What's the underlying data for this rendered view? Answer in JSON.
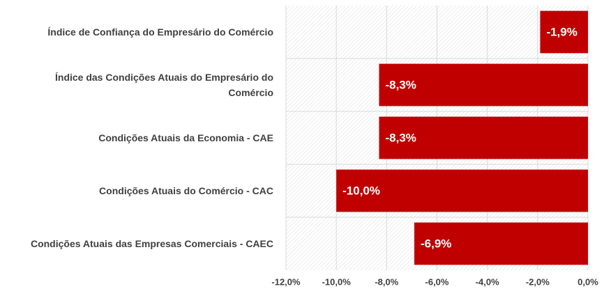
{
  "chart_data": {
    "type": "bar",
    "orientation": "horizontal",
    "categories": [
      "Índice de Confiança do Empresário do Comércio",
      "Índice das Condições Atuais do Empresário do Comércio",
      "Condições Atuais da Economia - CAE",
      "Condições Atuais do Comércio - CAC",
      "Condições Atuais das Empresas Comerciais - CAEC"
    ],
    "values": [
      -1.9,
      -8.3,
      -8.3,
      -10.0,
      -6.9
    ],
    "value_labels": [
      "-1,9%",
      "-8,3%",
      "-8,3%",
      "-10,0%",
      "-6,9%"
    ],
    "color": "#c00000",
    "xlim": [
      -12,
      0
    ],
    "xticks": [
      {
        "value": -12,
        "label": "-12,0%"
      },
      {
        "value": -10,
        "label": "-10,0%"
      },
      {
        "value": -8,
        "label": "-8,0%"
      },
      {
        "value": -6,
        "label": "-6,0%"
      },
      {
        "value": -4,
        "label": "-4,0%"
      },
      {
        "value": -2,
        "label": "-2,0%"
      },
      {
        "value": 0,
        "label": "0,0%"
      }
    ],
    "grid": true
  }
}
